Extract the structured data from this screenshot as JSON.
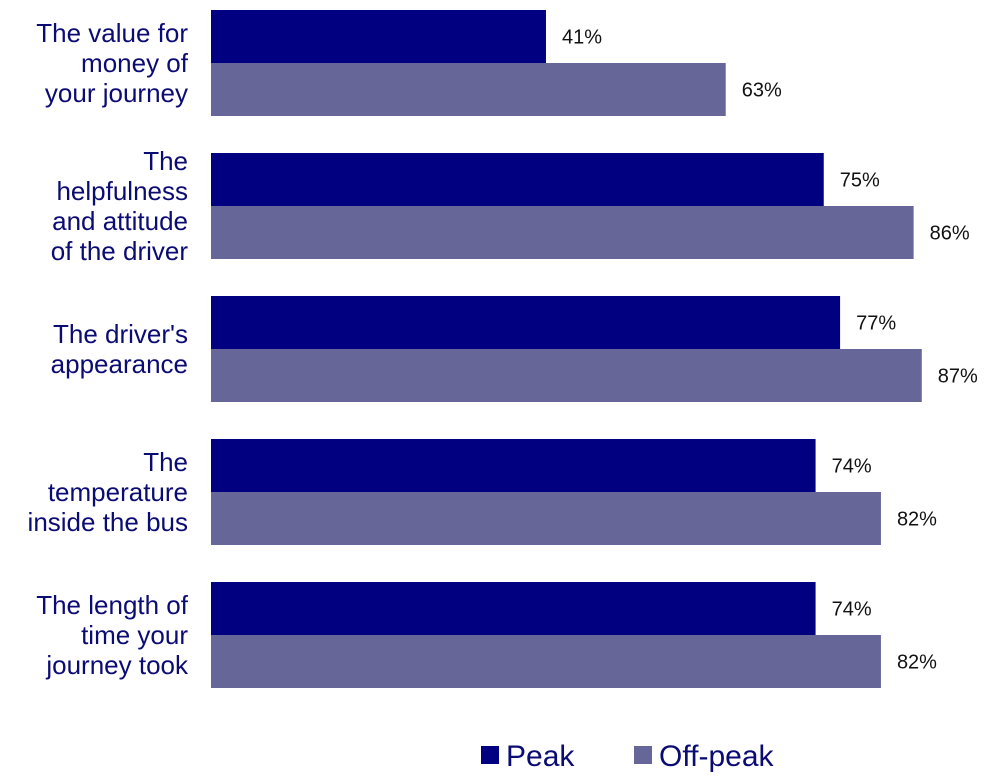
{
  "chart_data": {
    "type": "bar",
    "orientation": "horizontal",
    "title": "",
    "xlabel": "",
    "ylabel": "",
    "xlim": [
      0,
      100
    ],
    "grid": false,
    "legend_position": "bottom",
    "categories": [
      [
        "The value for",
        "money of",
        "your journey"
      ],
      [
        "The",
        "helpfulness",
        "and attitude",
        "of the driver"
      ],
      [
        "The driver's",
        "appearance"
      ],
      [
        "The",
        "temperature",
        "inside the bus"
      ],
      [
        "The length of",
        "time your",
        "journey took"
      ]
    ],
    "series": [
      {
        "name": "Peak",
        "color": "#000080",
        "values": [
          41,
          75,
          77,
          74,
          74
        ],
        "labels": [
          "41%",
          "75%",
          "77%",
          "74%",
          "74%"
        ]
      },
      {
        "name": "Off-peak",
        "color": "#666699",
        "values": [
          63,
          86,
          87,
          82,
          82
        ],
        "labels": [
          "63%",
          "86%",
          "87%",
          "82%",
          "82%"
        ]
      }
    ]
  },
  "colors": {
    "category_text": "#0b0b74",
    "value_text": "#111111",
    "background": "#ffffff"
  }
}
